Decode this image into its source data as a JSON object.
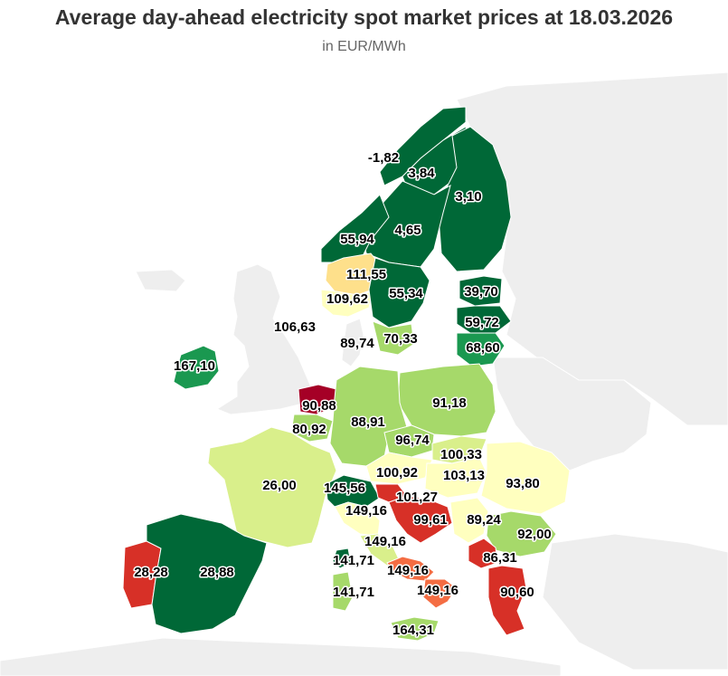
{
  "title": "Average day-ahead electricity spot market prices at 18.03.2026",
  "subtitle": "in EUR/MWh",
  "colors": {
    "background_land": "#eeeeee",
    "dark_green": "#006837",
    "mid_green": "#1a9850",
    "light_green": "#a6d96a",
    "pale_green": "#d9ef8b",
    "pale_yellow": "#ffffbf",
    "yellow_orange": "#fee08b",
    "orange": "#f46d43",
    "red": "#d73027",
    "dark_red": "#a50026"
  },
  "zones": [
    {
      "id": "NO4",
      "price": "-1,82",
      "color": "#006837"
    },
    {
      "id": "SE1",
      "price": "3,84",
      "color": "#006837"
    },
    {
      "id": "FI",
      "price": "3,10",
      "color": "#006837"
    },
    {
      "id": "SE2",
      "price": "4,65",
      "color": "#006837"
    },
    {
      "id": "NO3",
      "price": "55,94",
      "color": "#006837"
    },
    {
      "id": "NO1",
      "price": "111,55",
      "color": "#fee08b"
    },
    {
      "id": "NO2",
      "price": "109,62",
      "color": "#ffffbf"
    },
    {
      "id": "SE3",
      "price": "55,34",
      "color": "#006837"
    },
    {
      "id": "EE",
      "price": "39,70",
      "color": "#006837"
    },
    {
      "id": "LV",
      "price": "59,72",
      "color": "#006837"
    },
    {
      "id": "LT",
      "price": "68,60",
      "color": "#1a9850"
    },
    {
      "id": "GB",
      "price": "106,63",
      "color": "#eeeeee"
    },
    {
      "id": "DK1",
      "price": "89,74",
      "color": "#a6d96a"
    },
    {
      "id": "SE4",
      "price": "70,33",
      "color": "#1a9850"
    },
    {
      "id": "IE",
      "price": "167,10",
      "color": "#a50026"
    },
    {
      "id": "NL",
      "price": "90,88",
      "color": "#a6d96a"
    },
    {
      "id": "PL",
      "price": "91,18",
      "color": "#a6d96a"
    },
    {
      "id": "BE",
      "price": "80,92",
      "color": "#a6d96a"
    },
    {
      "id": "DE",
      "price": "88,91",
      "color": "#a6d96a"
    },
    {
      "id": "CZ",
      "price": "96,74",
      "color": "#d9ef8b"
    },
    {
      "id": "SK",
      "price": "100,33",
      "color": "#ffffbf"
    },
    {
      "id": "AT",
      "price": "100,92",
      "color": "#ffffbf"
    },
    {
      "id": "HU",
      "price": "103,13",
      "color": "#ffffbf"
    },
    {
      "id": "RO",
      "price": "93,80",
      "color": "#d9ef8b"
    },
    {
      "id": "FR",
      "price": "26,00",
      "color": "#006837"
    },
    {
      "id": "IT-NORD",
      "price": "145,56",
      "color": "#d73027"
    },
    {
      "id": "SI",
      "price": "101,27",
      "color": "#ffffbf"
    },
    {
      "id": "IT-CNOR",
      "price": "149,16",
      "color": "#d73027"
    },
    {
      "id": "HR",
      "price": "99,61",
      "color": "#ffffbf"
    },
    {
      "id": "RS",
      "price": "89,24",
      "color": "#a6d96a"
    },
    {
      "id": "BG",
      "price": "92,00",
      "color": "#d9ef8b"
    },
    {
      "id": "IT-CSUD",
      "price": "149,16",
      "color": "#d73027"
    },
    {
      "id": "PT",
      "price": "28,28",
      "color": "#006837"
    },
    {
      "id": "ES",
      "price": "28,88",
      "color": "#006837"
    },
    {
      "id": "IT-SARD-N",
      "price": "141,71",
      "color": "#f46d43"
    },
    {
      "id": "IT-SUD",
      "price": "149,16",
      "color": "#d73027"
    },
    {
      "id": "MK",
      "price": "86,31",
      "color": "#a6d96a"
    },
    {
      "id": "IT-SARD",
      "price": "141,71",
      "color": "#f46d43"
    },
    {
      "id": "IT-CALA",
      "price": "149,16",
      "color": "#d73027"
    },
    {
      "id": "GR",
      "price": "90,60",
      "color": "#a6d96a"
    },
    {
      "id": "IT-SICI",
      "price": "164,31",
      "color": "#a50026"
    }
  ]
}
